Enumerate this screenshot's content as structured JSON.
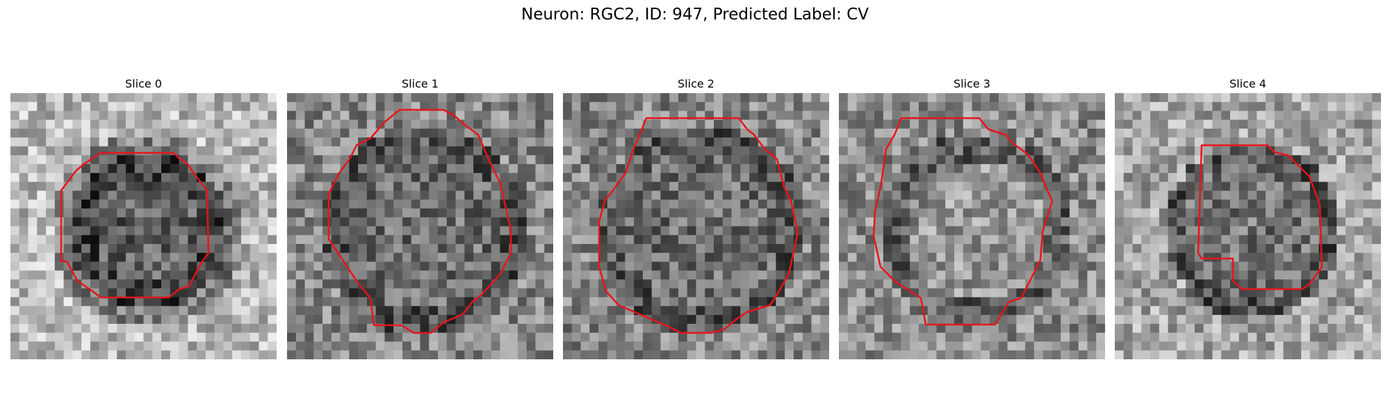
{
  "figure": {
    "title": "Neuron: RGC2, ID: 947, Predicted Label: CV"
  },
  "panels": [
    {
      "title": "Slice 0",
      "seed": 11,
      "style": "ring"
    },
    {
      "title": "Slice 1",
      "seed": 23,
      "style": "dark"
    },
    {
      "title": "Slice 2",
      "seed": 37,
      "style": "dark"
    },
    {
      "title": "Slice 3",
      "seed": 51,
      "style": "mid"
    },
    {
      "title": "Slice 4",
      "seed": 73,
      "style": "light"
    }
  ],
  "colors": {
    "contour": "#e8141b"
  }
}
